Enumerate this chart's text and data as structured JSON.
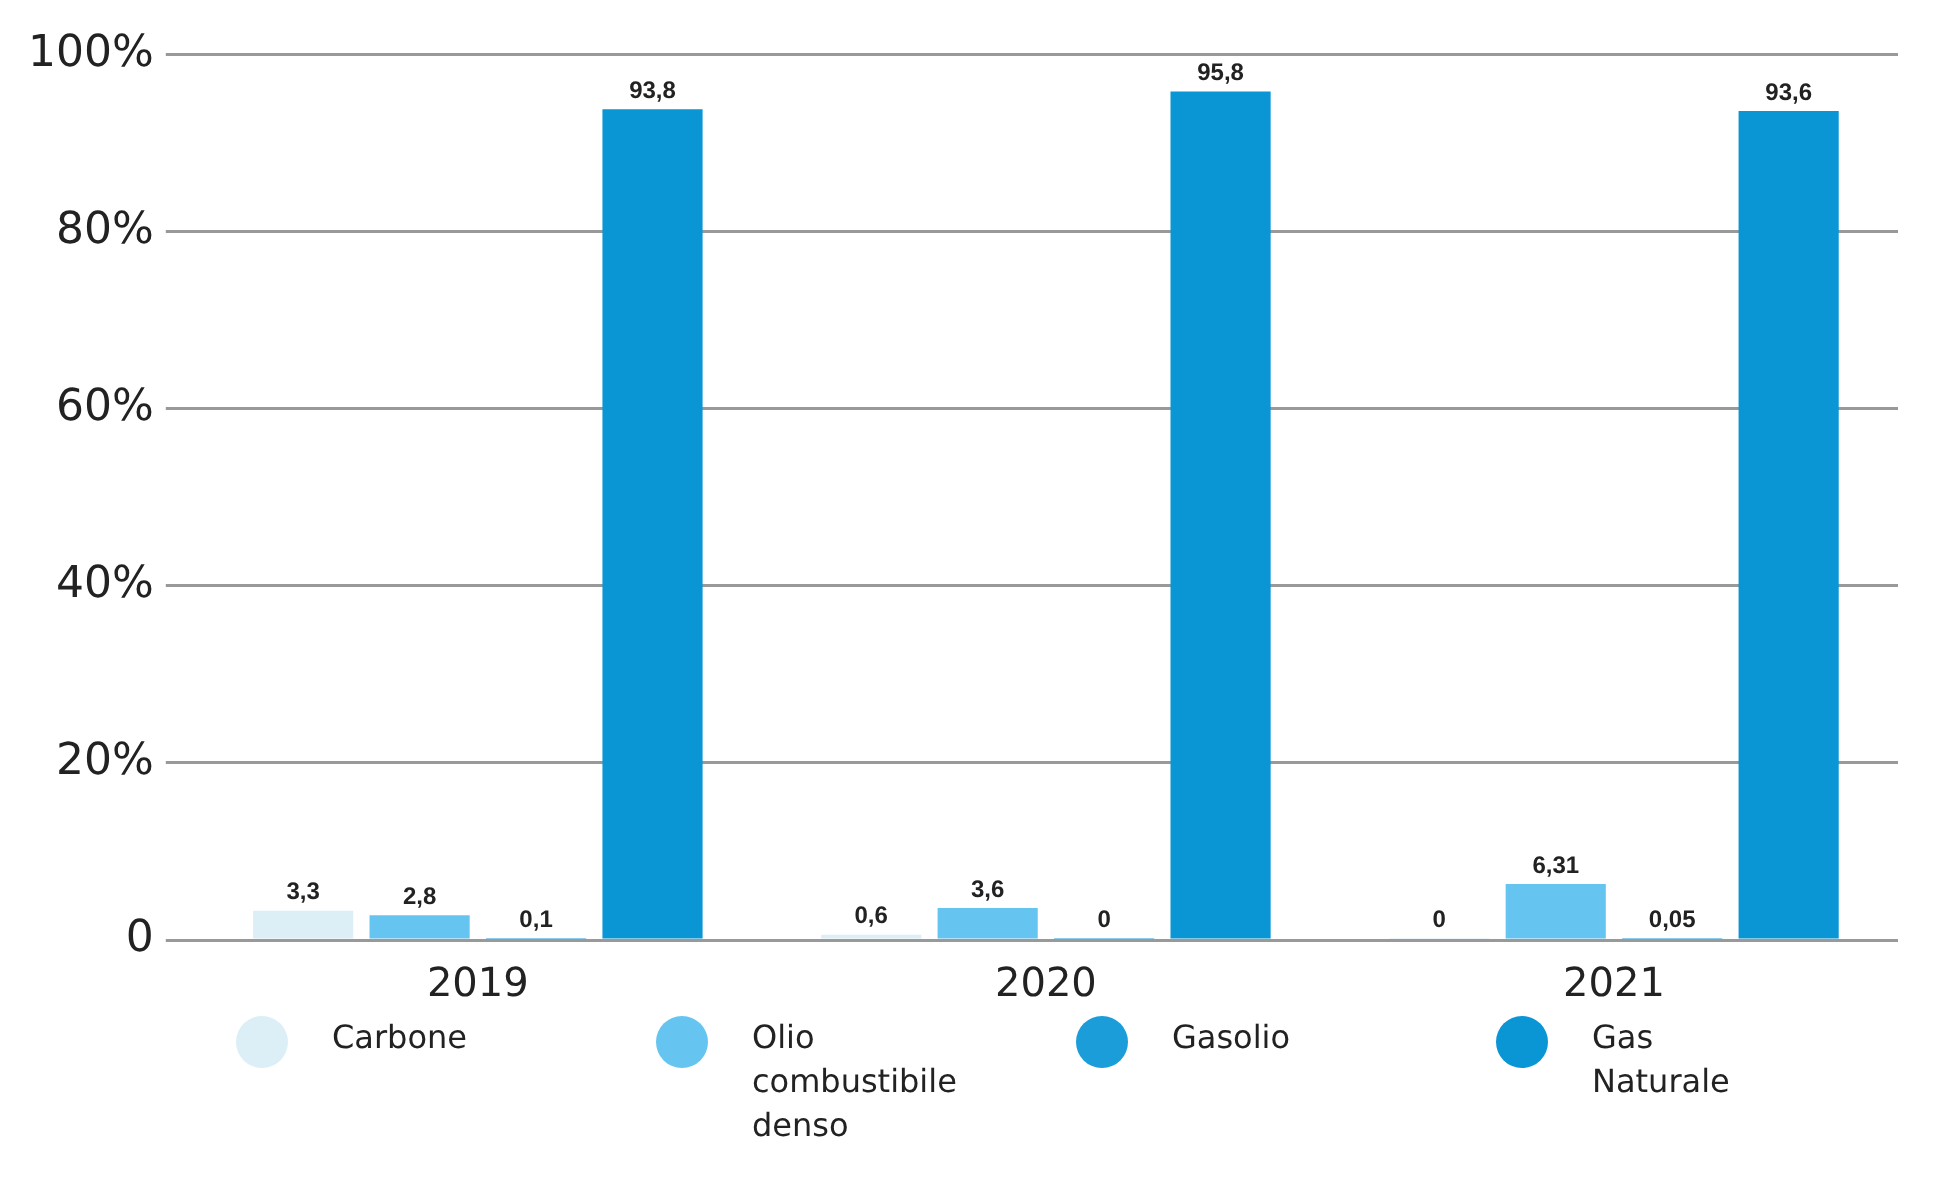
{
  "chart_data": {
    "type": "bar",
    "categories": [
      "2019",
      "2020",
      "2021"
    ],
    "series": [
      {
        "name": "Carbone",
        "color": "#dceff7",
        "values": [
          3.3,
          0.6,
          0
        ],
        "value_labels": [
          "3,3",
          "0,6",
          "0"
        ]
      },
      {
        "name": "Olio combustibile denso",
        "color": "#66c5f0",
        "values": [
          2.8,
          3.6,
          6.31
        ],
        "value_labels": [
          "2,8",
          "3,6",
          "6,31"
        ]
      },
      {
        "name": "Gasolio",
        "color": "#1a9dd9",
        "values": [
          0.1,
          0,
          0.05
        ],
        "value_labels": [
          "0,1",
          "0",
          "0,05"
        ]
      },
      {
        "name": "Gas Naturale",
        "color": "#0a95d5",
        "values": [
          93.8,
          95.8,
          93.6
        ],
        "value_labels": [
          "93,8",
          "95,8",
          "93,6"
        ]
      }
    ],
    "ylim": [
      0,
      100
    ],
    "yticks": [
      {
        "value": 0,
        "label": "0"
      },
      {
        "value": 20,
        "label": "20%"
      },
      {
        "value": 40,
        "label": "40%"
      },
      {
        "value": 60,
        "label": "60%"
      },
      {
        "value": 80,
        "label": "80%"
      },
      {
        "value": 100,
        "label": "100%"
      }
    ],
    "grid": "y",
    "legend": "bottom"
  }
}
